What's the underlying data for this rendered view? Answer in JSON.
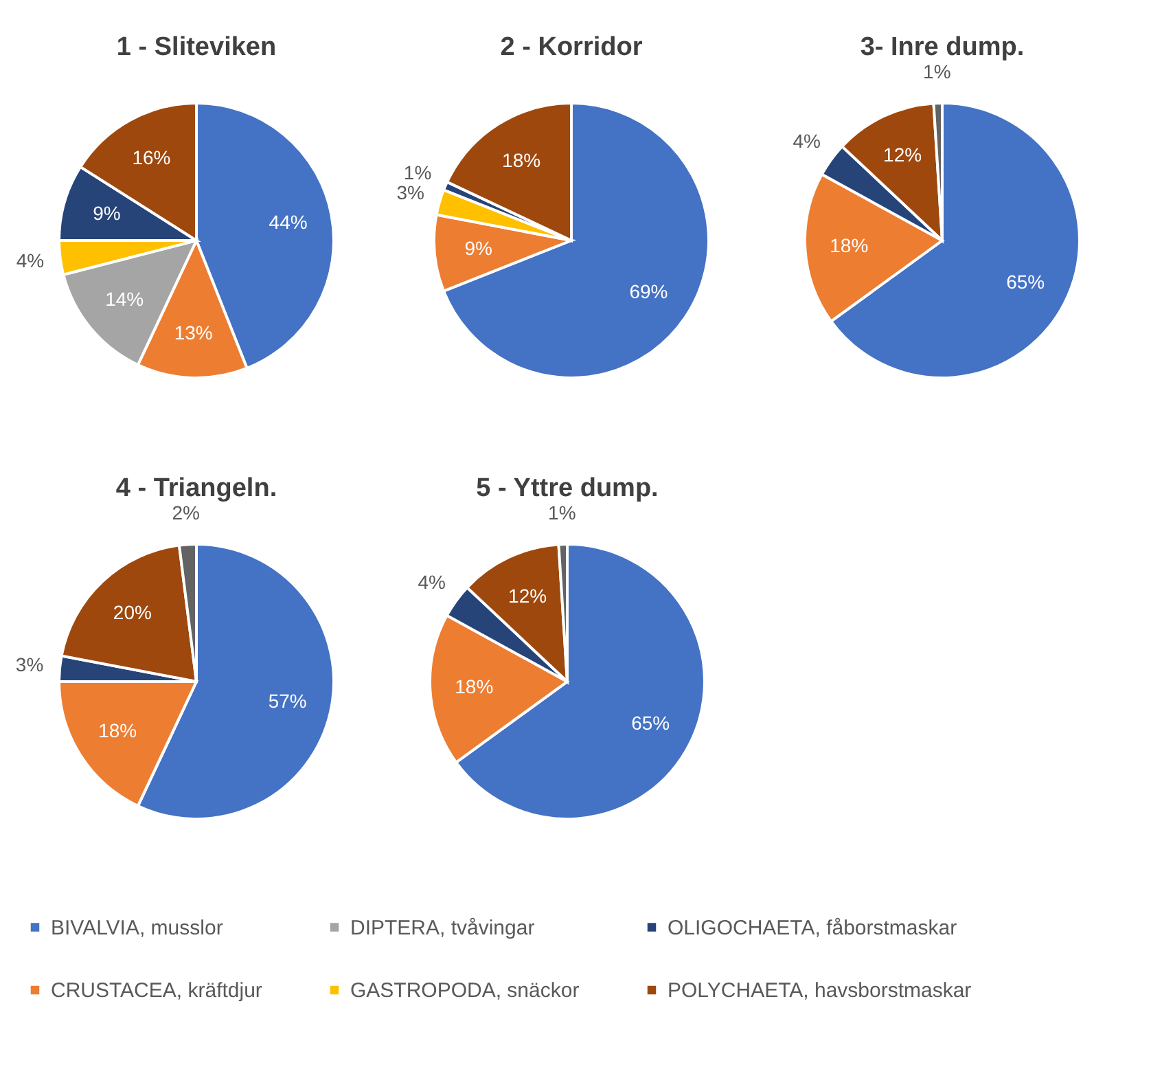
{
  "chart_data": [
    {
      "type": "pie",
      "title": "1 - Sliteviken",
      "legend": "bottom",
      "categories": [
        "BIVALVIA, musslor",
        "CRUSTACEA, kräftdjur",
        "DIPTERA, tvåvingar",
        "GASTROPODA, snäckor",
        "OLIGOCHAETA, fåborstmaskar",
        "POLYCHAETA, havsborstmaskar"
      ],
      "values": [
        44,
        13,
        14,
        4,
        9,
        16
      ],
      "value_labels": [
        "44%",
        "13%",
        "14%",
        "4%",
        "9%",
        "16%"
      ],
      "colors": [
        "#4472c4",
        "#ed7d31",
        "#a5a5a5",
        "#ffc000",
        "#264478",
        "#9e480e"
      ]
    },
    {
      "type": "pie",
      "title": "2 - Korridor",
      "categories": [
        null,
        null,
        null,
        null,
        null
      ],
      "values": [
        69,
        9,
        3,
        1,
        18
      ],
      "value_labels": [
        "69%",
        "9%",
        "3%",
        "1%",
        "18%"
      ],
      "colors": [
        "#4472c4",
        "#ed7d31",
        "#ffc000",
        "#264478",
        "#9e480e"
      ]
    },
    {
      "type": "pie",
      "title": "3- Inre dump.",
      "categories": [
        null,
        null,
        null,
        null,
        null
      ],
      "values": [
        65,
        18,
        4,
        12,
        1
      ],
      "value_labels": [
        "65%",
        "18%",
        "4%",
        "12%",
        "1%"
      ],
      "colors": [
        "#4472c4",
        "#ed7d31",
        "#264478",
        "#9e480e",
        "#636363"
      ]
    },
    {
      "type": "pie",
      "title": "4 - Triangeln.",
      "categories": [
        null,
        null,
        null,
        null,
        null
      ],
      "values": [
        57,
        18,
        3,
        20,
        2
      ],
      "value_labels": [
        "57%",
        "18%",
        "3%",
        "20%",
        "2%"
      ],
      "colors": [
        "#4472c4",
        "#ed7d31",
        "#264478",
        "#9e480e",
        "#636363"
      ]
    },
    {
      "type": "pie",
      "title": "5 - Yttre dump.",
      "categories": [
        null,
        null,
        null,
        null,
        null
      ],
      "values": [
        65,
        18,
        4,
        12,
        1
      ],
      "value_labels": [
        "65%",
        "18%",
        "4%",
        "12%",
        "1%"
      ],
      "colors": [
        "#4472c4",
        "#ed7d31",
        "#264478",
        "#9e480e",
        "#636363"
      ]
    }
  ]
}
